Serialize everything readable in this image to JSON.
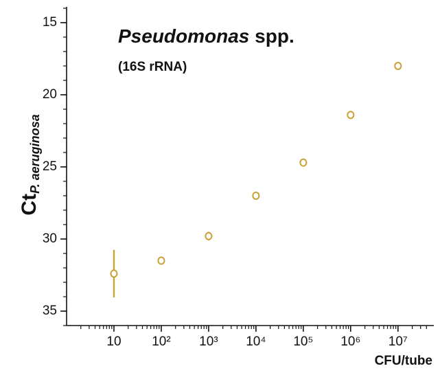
{
  "chart_data": {
    "type": "scatter",
    "title": [
      "Pseudomonas",
      "spp."
    ],
    "subtitle": "(16S rRNA)",
    "ylabel": [
      "Ct",
      "P. aeruginosa"
    ],
    "xlabel": "CFU/tube",
    "xscale": "log",
    "yinverted": true,
    "minor_ticks": true,
    "xlim": [
      1,
      50000000
    ],
    "ylim": [
      36,
      14
    ],
    "xticks": [
      10,
      {
        "value": 100,
        "label": "10²"
      },
      {
        "value": 1000,
        "label": "10³"
      },
      {
        "value": 10000,
        "label": "10⁴"
      },
      {
        "value": 100000,
        "label": "10⁵"
      },
      {
        "value": 1000000,
        "label": "10⁶"
      },
      {
        "value": 10000000,
        "label": "10⁷"
      }
    ],
    "yticks": [
      15,
      20,
      25,
      30,
      35
    ],
    "series": [
      {
        "color": "#c9a035",
        "x": [
          10,
          100,
          1000,
          10000,
          100000,
          1000000,
          10000000
        ],
        "values": [
          32.4,
          31.5,
          29.8,
          27.0,
          24.7,
          21.4,
          18.0
        ],
        "errors": [
          1.65,
          0.2,
          0.3,
          0.2,
          0.2,
          0.2,
          0.2
        ]
      }
    ]
  }
}
